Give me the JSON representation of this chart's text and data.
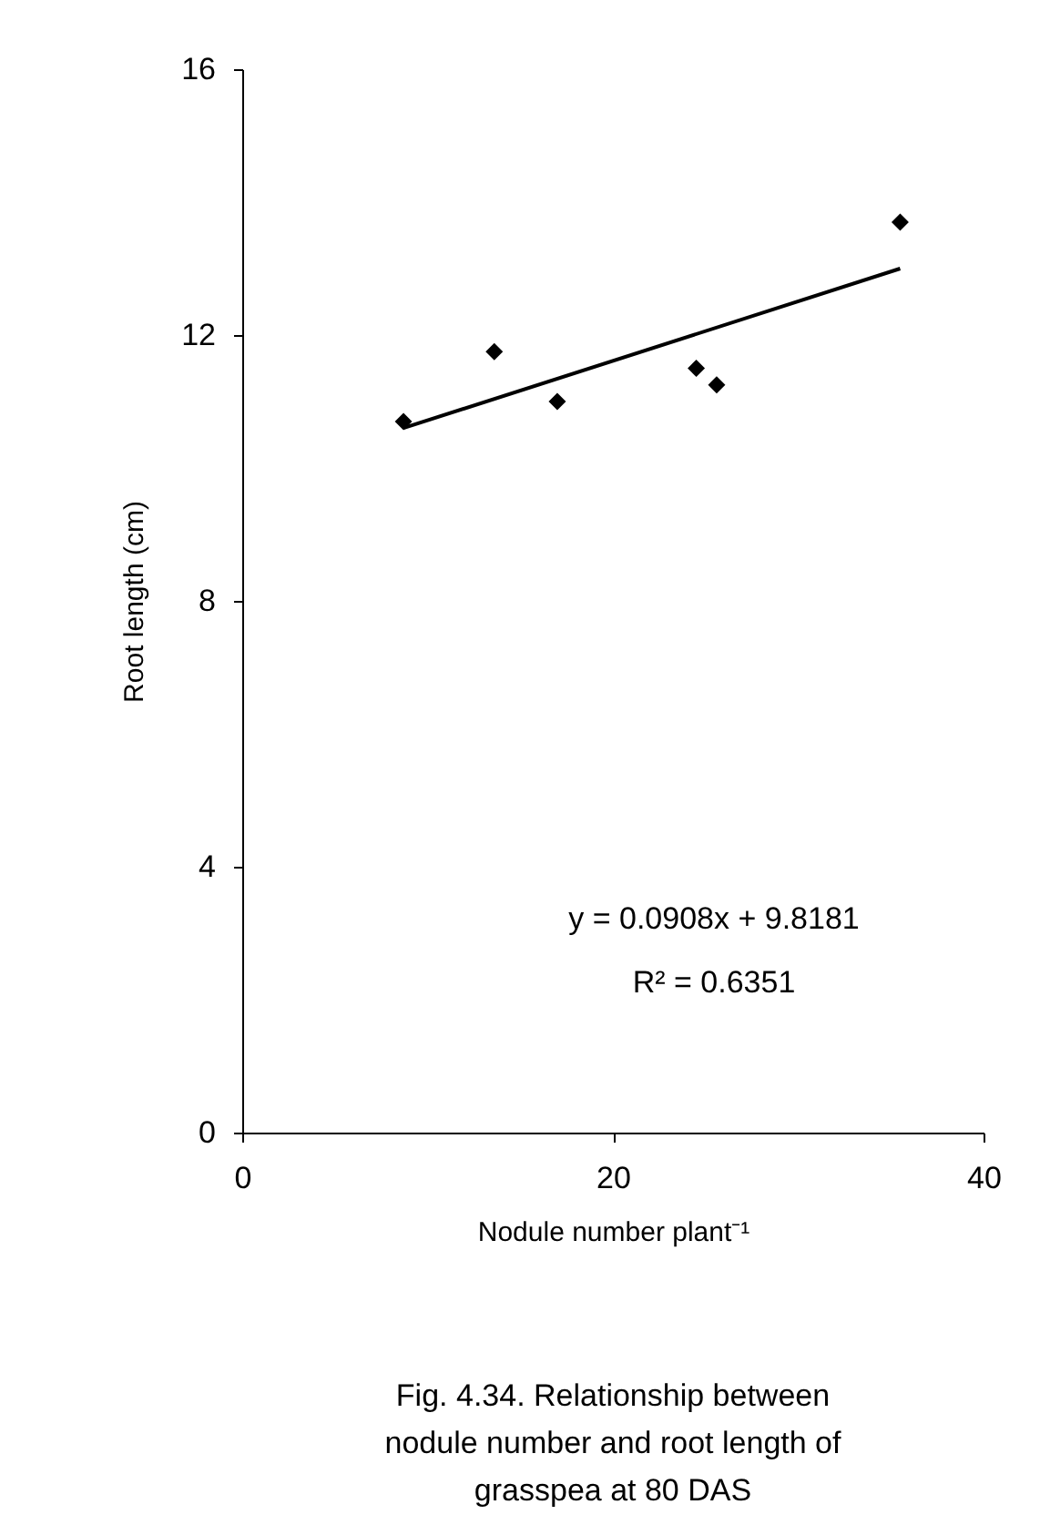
{
  "chart_data": {
    "type": "scatter",
    "title": "Fig. 4.34. Relationship between nodule number and root length of grasspea at 80 DAS",
    "xlabel": "Nodule number plant⁻¹",
    "ylabel": "Root length (cm)",
    "series": [
      {
        "color": "#000000",
        "marker": "diamond",
        "x": [
          8.7,
          13.6,
          17.0,
          24.5,
          25.6,
          35.5
        ],
        "values": [
          10.7,
          11.75,
          11.0,
          11.5,
          11.25,
          13.7
        ]
      },
      {
        "type": "line",
        "color": "#000000",
        "line_style": "solid",
        "marker": "none",
        "x": [
          8.7,
          35.5
        ],
        "values": [
          10.6,
          13.0
        ]
      }
    ],
    "annotations": [
      "y = 0.0908x + 9.8181",
      "R² = 0.6351"
    ],
    "xlim": [
      0,
      40
    ],
    "xticks": [
      0,
      20,
      40
    ],
    "ylim": [
      0,
      16
    ],
    "yticks": [
      0,
      4,
      8,
      12,
      16
    ],
    "grid": false
  }
}
